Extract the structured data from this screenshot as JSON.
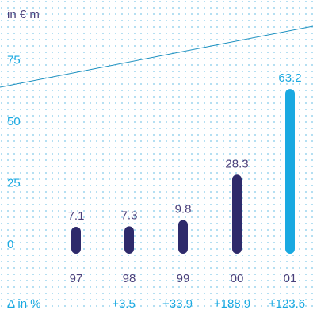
{
  "chart_data": {
    "type": "bar",
    "unit_label": "in € m",
    "categories": [
      "97",
      "98",
      "99",
      "00",
      "01"
    ],
    "values": [
      7.1,
      7.3,
      9.8,
      28.3,
      63.2
    ],
    "value_labels": [
      "7.1",
      "7.3",
      "9.8",
      "28.3",
      "63.2"
    ],
    "highlight_index": 4,
    "yticks": [
      "0",
      "25",
      "50",
      "75"
    ],
    "ylim": [
      0,
      75
    ],
    "grid": "dotted",
    "delta_label": "Δ in %",
    "deltas": [
      "",
      "+3.5",
      "+33.9",
      "+188.9",
      "+123.6"
    ],
    "trend_line": true,
    "colors": {
      "bar": "#2e2a6b",
      "highlight_bar": "#19a9e1",
      "text": "#4a3f7a",
      "accent_text": "#19a9e1",
      "grid_dot": "#7ec8e8",
      "trend_line": "#1a8fbf"
    }
  }
}
